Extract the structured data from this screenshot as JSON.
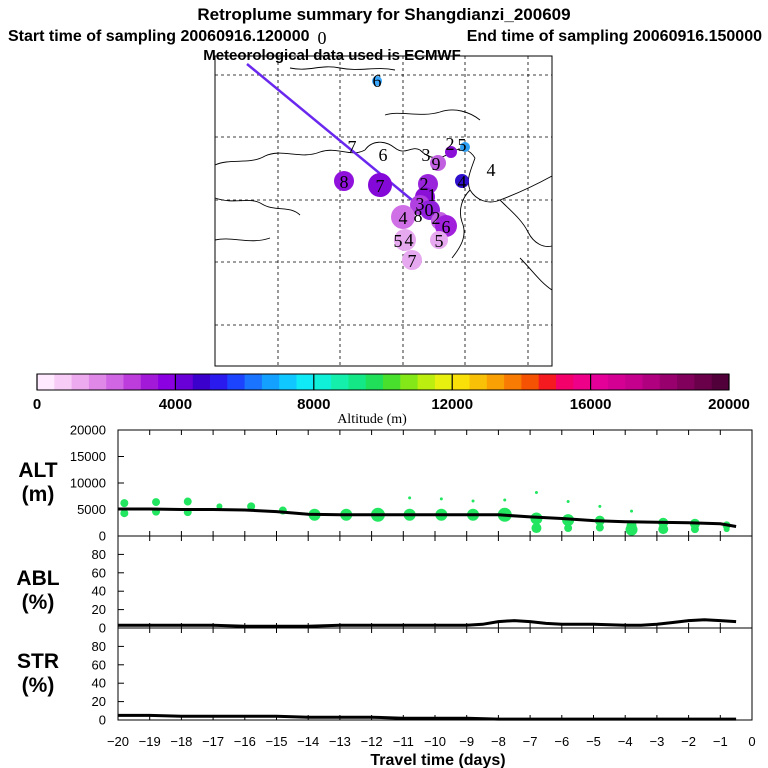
{
  "title": {
    "line1": "Retroplume summary for Shangdianzi_200609",
    "line2_left": "Start time of sampling 20060916.120000",
    "line2_right": "End time of sampling 20060916.150000",
    "line3": "Meteorological data used is ECMWF"
  },
  "chart_data": [
    {
      "type": "map",
      "name": "retroplume map",
      "clusters": [
        {
          "label": "0",
          "lon": 0.0,
          "lat": 0.0,
          "altitude": null
        },
        {
          "label": "6",
          "lon": 0.0,
          "lat": 0.0,
          "altitude": 6200
        },
        {
          "label": "2",
          "lon": 0.0,
          "lat": 0.0,
          "altitude": 6600
        },
        {
          "label": "5",
          "lon": 0.0,
          "lat": 0.0,
          "altitude": 6600
        },
        {
          "label": "7",
          "lon": 0.0,
          "lat": 0.0,
          "altitude": null
        },
        {
          "label": "6",
          "lon": 0.0,
          "lat": 0.0,
          "altitude": null
        },
        {
          "label": "3",
          "lon": 0.0,
          "lat": 0.0,
          "altitude": null
        },
        {
          "label": "8",
          "lon": 0.0,
          "lat": 0.0,
          "altitude": 2800
        },
        {
          "label": "7",
          "lon": 0.0,
          "lat": 0.0,
          "altitude": 3000
        },
        {
          "label": "9",
          "lon": 0.0,
          "lat": 0.0,
          "altitude": 2300
        },
        {
          "label": "2",
          "lon": 0.0,
          "lat": 0.0,
          "altitude": 2500
        },
        {
          "label": "4",
          "lon": 0.0,
          "lat": 0.0,
          "altitude": 3800
        },
        {
          "label": "4",
          "lon": 0.0,
          "lat": 0.0,
          "altitude": null
        },
        {
          "label": "1",
          "lon": 0.0,
          "lat": 0.0,
          "altitude": 3300
        },
        {
          "label": "3",
          "lon": 0.0,
          "lat": 0.0,
          "altitude": 2900
        },
        {
          "label": "0",
          "lon": 0.0,
          "lat": 0.0,
          "altitude": 3200
        },
        {
          "label": "4",
          "lon": 0.0,
          "lat": 0.0,
          "altitude": 2400
        },
        {
          "label": "2",
          "lon": 0.0,
          "lat": 0.0,
          "altitude": 1800
        },
        {
          "label": "6",
          "lon": 0.0,
          "lat": 0.0,
          "altitude": 3100
        },
        {
          "label": "8",
          "lon": 0.0,
          "lat": 0.0,
          "altitude": 1500
        },
        {
          "label": "5",
          "lon": 0.0,
          "lat": 0.0,
          "altitude": 1300
        },
        {
          "label": "4",
          "lon": 0.0,
          "lat": 0.0,
          "altitude": 1300
        },
        {
          "label": "5",
          "lon": 0.0,
          "lat": 0.0,
          "altitude": 1300
        },
        {
          "label": "7",
          "lon": 0.0,
          "lat": 0.0,
          "altitude": 1300
        }
      ]
    },
    {
      "type": "colorbar",
      "name": "altitude colorbar",
      "xlabel": "Altitude (m)",
      "range": [
        0,
        20000
      ],
      "tick_labels": [
        "0",
        "4000",
        "8000",
        "12000",
        "16000",
        "20000"
      ],
      "tick_values": [
        0,
        4000,
        8000,
        12000,
        16000,
        20000
      ],
      "colors": [
        "#ffeaff",
        "#f7ccf7",
        "#eeaaee",
        "#e088e8",
        "#d066e4",
        "#bc3cdc",
        "#a21ad8",
        "#8a00e0",
        "#6a00d8",
        "#3c00cc",
        "#2a1aee",
        "#1c44ff",
        "#1a74ff",
        "#14a0ff",
        "#10c8ff",
        "#10eaf6",
        "#10f0d8",
        "#14f0ac",
        "#14e886",
        "#20e05a",
        "#48e02c",
        "#84e818",
        "#bcee10",
        "#e8f010",
        "#f8e008",
        "#f8c006",
        "#f8a004",
        "#f87c04",
        "#f65204",
        "#f41a20",
        "#f4006a",
        "#ee0088",
        "#e40098",
        "#d40094",
        "#c4008c",
        "#b00080",
        "#98006e",
        "#80005c",
        "#6a004a",
        "#52003a"
      ]
    },
    {
      "type": "scatter+line",
      "name": "ALT panel",
      "ylabel_line1": "ALT",
      "ylabel_line2": "(m)",
      "ylim": [
        0,
        20000
      ],
      "yticks": [
        "0",
        "5000",
        "10000",
        "15000",
        "20000"
      ],
      "ytick_values": [
        0,
        5000,
        10000,
        15000,
        20000
      ],
      "marker_color": "#22e660",
      "line_x": [
        -20,
        -19,
        -18,
        -17,
        -16,
        -15,
        -14,
        -13,
        -12,
        -11,
        -10,
        -9,
        -8,
        -7,
        -6,
        -5,
        -4,
        -3,
        -2,
        -1,
        -0.5
      ],
      "line_y": [
        5100,
        5100,
        5000,
        5000,
        4900,
        4600,
        4100,
        4000,
        4000,
        4000,
        4000,
        4000,
        4000,
        3600,
        3300,
        2900,
        2700,
        2600,
        2500,
        2300,
        1800
      ],
      "points": [
        {
          "x": -19.8,
          "y": 6200,
          "r": 4
        },
        {
          "x": -19.8,
          "y": 4300,
          "r": 4
        },
        {
          "x": -18.8,
          "y": 6400,
          "r": 4
        },
        {
          "x": -18.8,
          "y": 4600,
          "r": 4
        },
        {
          "x": -17.8,
          "y": 6500,
          "r": 4
        },
        {
          "x": -17.8,
          "y": 4500,
          "r": 4
        },
        {
          "x": -16.8,
          "y": 5600,
          "r": 3
        },
        {
          "x": -15.8,
          "y": 5600,
          "r": 4
        },
        {
          "x": -14.8,
          "y": 4800,
          "r": 4
        },
        {
          "x": -13.8,
          "y": 4000,
          "r": 6
        },
        {
          "x": -12.8,
          "y": 4000,
          "r": 6
        },
        {
          "x": -11.8,
          "y": 4000,
          "r": 7
        },
        {
          "x": -10.8,
          "y": 4000,
          "r": 6
        },
        {
          "x": -10.8,
          "y": 7200,
          "r": 1.5
        },
        {
          "x": -9.8,
          "y": 4000,
          "r": 6
        },
        {
          "x": -9.8,
          "y": 7000,
          "r": 1.5
        },
        {
          "x": -8.8,
          "y": 4000,
          "r": 6
        },
        {
          "x": -8.8,
          "y": 6600,
          "r": 1.5
        },
        {
          "x": -7.8,
          "y": 4000,
          "r": 7
        },
        {
          "x": -7.8,
          "y": 6800,
          "r": 1.5
        },
        {
          "x": -6.8,
          "y": 3300,
          "r": 6
        },
        {
          "x": -6.8,
          "y": 1500,
          "r": 5
        },
        {
          "x": -6.8,
          "y": 8200,
          "r": 1.5
        },
        {
          "x": -5.8,
          "y": 3000,
          "r": 6
        },
        {
          "x": -5.8,
          "y": 1500,
          "r": 4
        },
        {
          "x": -5.8,
          "y": 6500,
          "r": 1.5
        },
        {
          "x": -4.8,
          "y": 2900,
          "r": 5
        },
        {
          "x": -4.8,
          "y": 1600,
          "r": 4
        },
        {
          "x": -4.8,
          "y": 5600,
          "r": 1.5
        },
        {
          "x": -3.8,
          "y": 2000,
          "r": 5
        },
        {
          "x": -3.8,
          "y": 1200,
          "r": 6
        },
        {
          "x": -3.8,
          "y": 4700,
          "r": 1.5
        },
        {
          "x": -2.8,
          "y": 2500,
          "r": 5
        },
        {
          "x": -2.8,
          "y": 1300,
          "r": 5
        },
        {
          "x": -1.8,
          "y": 2300,
          "r": 5
        },
        {
          "x": -1.8,
          "y": 1300,
          "r": 4
        },
        {
          "x": -0.8,
          "y": 2000,
          "r": 4
        },
        {
          "x": -0.8,
          "y": 1300,
          "r": 3
        }
      ]
    },
    {
      "type": "line",
      "name": "ABL panel",
      "ylabel_line1": "ABL",
      "ylabel_line2": "(%)",
      "ylim": [
        0,
        100
      ],
      "yticks": [
        "0",
        "20",
        "40",
        "60",
        "80"
      ],
      "ytick_values": [
        0,
        20,
        40,
        60,
        80
      ],
      "x": [
        -20,
        -19,
        -18,
        -17,
        -16,
        -15,
        -14,
        -13,
        -12,
        -11,
        -10,
        -9,
        -8.5,
        -8,
        -7.5,
        -7,
        -6.5,
        -6,
        -5,
        -4,
        -3.5,
        -3,
        -2.5,
        -2,
        -1.5,
        -1,
        -0.5
      ],
      "y": [
        3,
        3,
        3,
        3,
        2,
        2,
        2,
        3,
        3,
        3,
        3,
        3,
        4,
        7,
        8,
        7,
        5,
        4,
        4,
        3,
        3,
        4,
        6,
        8,
        9,
        8,
        7
      ]
    },
    {
      "type": "line",
      "name": "STR panel",
      "ylabel_line1": "STR",
      "ylabel_line2": "(%)",
      "ylim": [
        0,
        100
      ],
      "yticks": [
        "0",
        "20",
        "40",
        "60",
        "80"
      ],
      "ytick_values": [
        0,
        20,
        40,
        60,
        80
      ],
      "xlabel": "Travel time (days)",
      "xlim": [
        -20,
        0
      ],
      "xticks": [
        "−20",
        "−19",
        "−18",
        "−17",
        "−16",
        "−15",
        "−14",
        "−13",
        "−12",
        "−11",
        "−10",
        "−9",
        "−8",
        "−7",
        "−6",
        "−5",
        "−4",
        "−3",
        "−2",
        "−1",
        "0"
      ],
      "xtick_values": [
        -20,
        -19,
        -18,
        -17,
        -16,
        -15,
        -14,
        -13,
        -12,
        -11,
        -10,
        -9,
        -8,
        -7,
        -6,
        -5,
        -4,
        -3,
        -2,
        -1,
        0
      ],
      "x": [
        -20,
        -19,
        -18,
        -17,
        -16,
        -15,
        -14,
        -13,
        -12,
        -11,
        -10,
        -9,
        -8,
        -7,
        -6,
        -5,
        -4,
        -3,
        -2,
        -1,
        -0.5
      ],
      "y": [
        5,
        5,
        4,
        4,
        4,
        4,
        3,
        3,
        3,
        2,
        2,
        2,
        1,
        1,
        1,
        1,
        1,
        1,
        1,
        1,
        1
      ]
    }
  ]
}
